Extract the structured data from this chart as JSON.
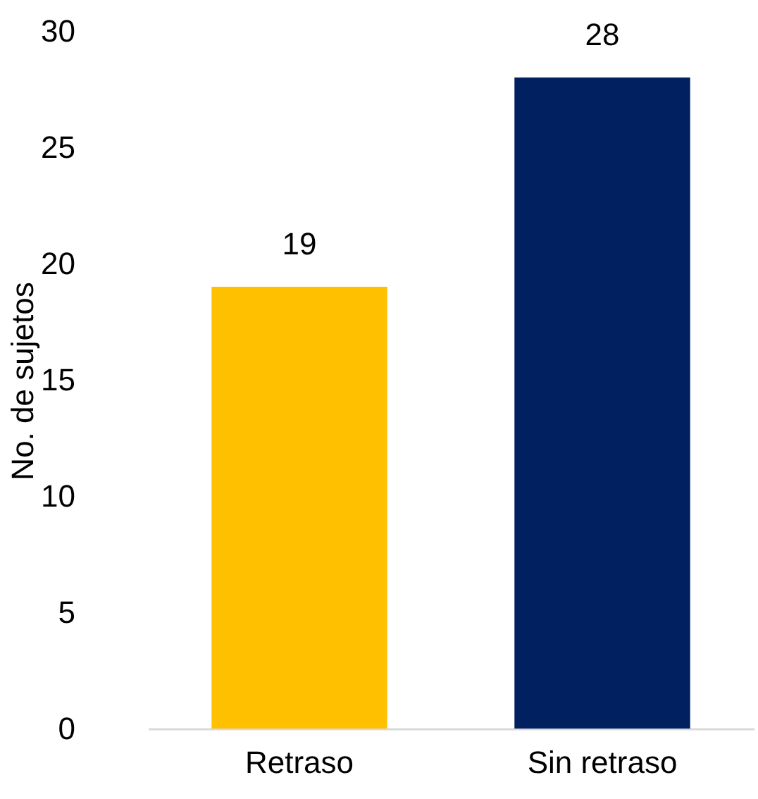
{
  "chart_data": {
    "type": "bar",
    "ylabel": "No. de sujetos",
    "categories": [
      "Retraso",
      "Sin retraso"
    ],
    "values": [
      19,
      28
    ],
    "colors": [
      "#ffc000",
      "#002060"
    ],
    "ylim": [
      0,
      30
    ],
    "yticks": [
      0,
      5,
      10,
      15,
      20,
      25,
      30
    ],
    "grid": false,
    "data_labels": true
  }
}
